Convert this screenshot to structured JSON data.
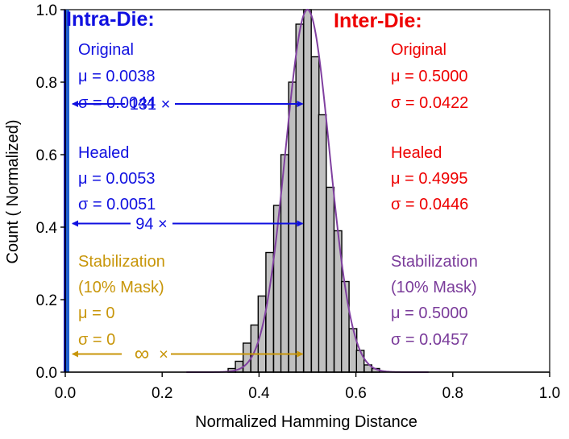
{
  "chart_data": {
    "type": "bar",
    "xlabel": "Normalized Hamming Distance",
    "ylabel": "Count ( Normalized)",
    "xlim": [
      0,
      1
    ],
    "ylim": [
      0,
      1
    ],
    "x_ticks": [
      "0.0",
      "0.2",
      "0.4",
      "0.6",
      "0.8",
      "1.0"
    ],
    "y_ticks": [
      "0.0",
      "0.2",
      "0.4",
      "0.6",
      "0.8",
      "1.0"
    ],
    "grid": false,
    "colors": {
      "intra": "#1010e0",
      "intra_bar": "#2060d0",
      "inter": "#ee0000",
      "stabilization_intra": "#c8960a",
      "stabilization_inter": "#7a3b9a",
      "histogram_fill": "#c0c0c0",
      "fit_curve": "#8040a0"
    },
    "intra_die_histogram": {
      "bin_centers": [
        0.0,
        0.005
      ],
      "values": [
        1.0,
        1.0
      ]
    },
    "inter_die_histogram": {
      "bin_width": 0.015625,
      "bin_centers": [
        0.344,
        0.359,
        0.375,
        0.391,
        0.406,
        0.422,
        0.438,
        0.453,
        0.469,
        0.484,
        0.5,
        0.516,
        0.531,
        0.547,
        0.563,
        0.578,
        0.594,
        0.609,
        0.625,
        0.641
      ],
      "values": [
        0.01,
        0.03,
        0.08,
        0.13,
        0.21,
        0.33,
        0.46,
        0.6,
        0.8,
        0.96,
        1.0,
        0.87,
        0.71,
        0.51,
        0.39,
        0.25,
        0.12,
        0.06,
        0.02,
        0.01
      ]
    },
    "inter_die_fit": {
      "mu": 0.5,
      "sigma": 0.0457
    },
    "annotations": {
      "intra_header": "Intra-Die:",
      "inter_header": "Inter-Die:",
      "intra": [
        {
          "label": "Original",
          "mu": "μ = 0.0038",
          "sigma": "σ = 0.0044"
        },
        {
          "label": "Healed",
          "mu": "μ = 0.0053",
          "sigma": "σ = 0.0051"
        },
        {
          "label": "Stabilization",
          "label2": "(10% Mask)",
          "mu": "μ = 0",
          "sigma": "σ = 0"
        }
      ],
      "inter": [
        {
          "label": "Original",
          "mu": "μ = 0.5000",
          "sigma": "σ = 0.0422"
        },
        {
          "label": "Healed",
          "mu": "μ = 0.4995",
          "sigma": "σ = 0.0446"
        },
        {
          "label": "Stabilization",
          "label2": "(10% Mask)",
          "mu": "μ = 0.5000",
          "sigma": "σ = 0.0457"
        }
      ],
      "ratios": [
        {
          "text": "131 ×",
          "y": 0.74,
          "x_from": 0.015,
          "x_to": 0.49
        },
        {
          "text": "94 ×",
          "y": 0.41,
          "x_from": 0.015,
          "x_to": 0.49
        },
        {
          "text": "∞",
          "suffix": "×",
          "y": 0.05,
          "x_from": 0.015,
          "x_to": 0.49
        }
      ]
    }
  }
}
